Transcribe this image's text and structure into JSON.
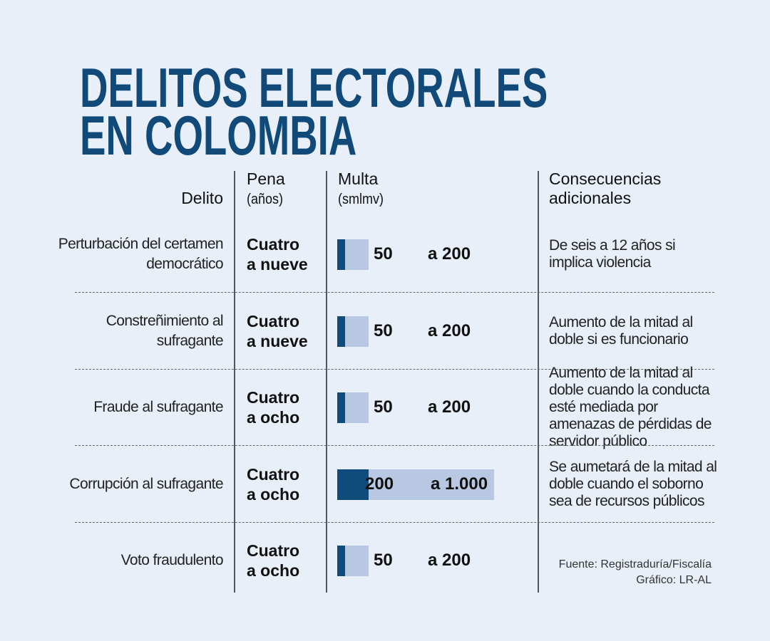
{
  "title_lines": [
    "DELITOS ELECTORALES",
    "EN COLOMBIA"
  ],
  "headers": {
    "delito": "Delito",
    "pena": "Pena",
    "pena_unit": "(años)",
    "multa": "Multa",
    "multa_unit": "(smlmv)",
    "conseq1": "Consecuencias",
    "conseq2": "adicionales"
  },
  "colors": {
    "title": "#114a78",
    "bar_min": "#0f4c7c",
    "bar_max": "#b8c8e2",
    "background": "#e9eff8"
  },
  "chart_data": {
    "type": "table",
    "title": "DELITOS ELECTORALES EN COLOMBIA",
    "columns": [
      "Delito",
      "Pena (años)",
      "Multa (smlmv)",
      "Consecuencias adicionales"
    ],
    "rows": [
      {
        "delito": "Perturbación del certamen democrático",
        "pena": [
          "Cuatro",
          "a nueve"
        ],
        "multa_min": 50,
        "multa_max": 200,
        "min_label": "50",
        "max_label": "a 200",
        "conseq": "De seis a 12 años si implica violencia"
      },
      {
        "delito": "Constreñimiento al sufragante",
        "pena": [
          "Cuatro",
          "a nueve"
        ],
        "multa_min": 50,
        "multa_max": 200,
        "min_label": "50",
        "max_label": "a 200",
        "conseq": "Aumento de la mitad al doble si es funcionario"
      },
      {
        "delito": "Fraude al sufragante",
        "pena": [
          "Cuatro",
          "a ocho"
        ],
        "multa_min": 50,
        "multa_max": 200,
        "min_label": "50",
        "max_label": "a 200",
        "conseq": "Aumento de la mitad al doble cuando la conducta esté mediada por amenazas de pérdidas de servidor público"
      },
      {
        "delito": "Corrupción al sufragante",
        "pena": [
          "Cuatro",
          "a ocho"
        ],
        "multa_min": 200,
        "multa_max": 1000,
        "min_label": "200",
        "max_label": "a 1.000",
        "conseq": "Se aumetará de la mitad al doble cuando el soborno sea de recursos públicos"
      },
      {
        "delito": "Voto fraudulento",
        "pena": [
          "Cuatro",
          "a ocho"
        ],
        "multa_min": 50,
        "multa_max": 200,
        "min_label": "50",
        "max_label": "a 200",
        "conseq": ""
      }
    ]
  },
  "source": "Fuente: Registraduría/Fiscalía",
  "credit": "Gráfico: LR-AL"
}
